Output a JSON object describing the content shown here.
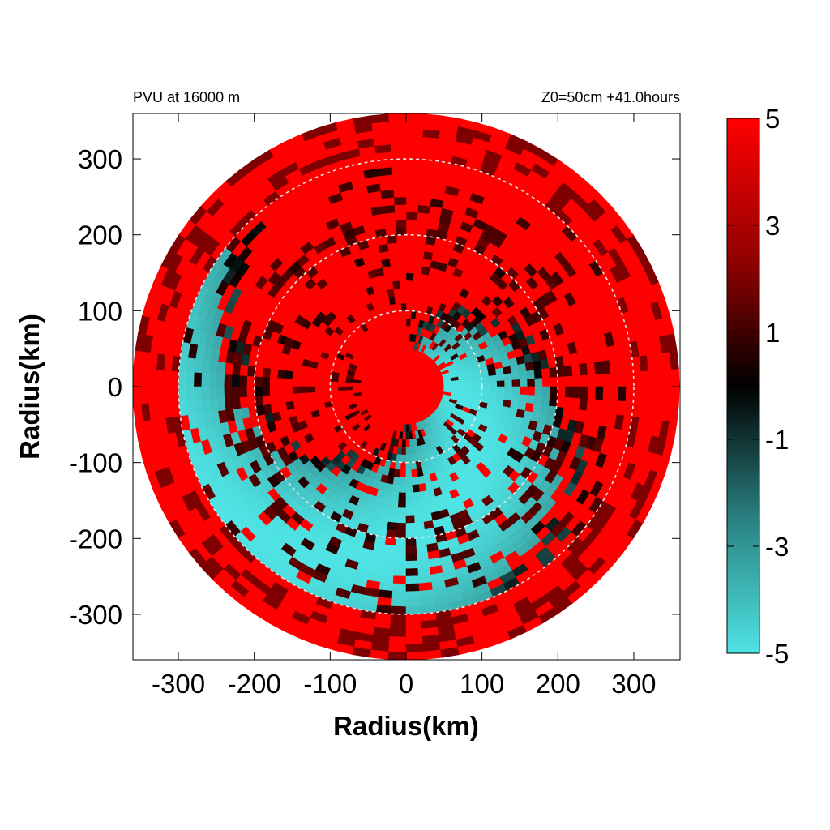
{
  "chart_data": {
    "type": "heatmap",
    "projection": "polar disk",
    "title_left": "PVU at 16000 m",
    "title_right": "Z0=50cm  +41.0hours",
    "xlabel": "Radius(km)",
    "ylabel": "Radius(km)",
    "xlim": [
      -360,
      360
    ],
    "ylim": [
      -360,
      360
    ],
    "x_ticks": [
      -300,
      -200,
      -100,
      0,
      100,
      200,
      300
    ],
    "y_ticks": [
      300,
      200,
      100,
      0,
      -100,
      -200,
      -300
    ],
    "disk_radius": 360,
    "reference_circles_km": [
      100,
      200,
      300
    ],
    "colorbar": {
      "min": -5,
      "max": 5,
      "ticks": [
        5,
        3,
        1,
        -1,
        -3,
        -5
      ],
      "colors": {
        "negative": "#4fe3e3",
        "zero": "#000000",
        "positive": "#ff0000"
      }
    },
    "field_summary": {
      "dominant_value": 5,
      "negative_region": "cyan spiral band (about -5 PVU) wrapping from the north of the center through the east to the south-east, radius about 50-300 km",
      "center_value": 5
    },
    "background": "#ffffff"
  }
}
